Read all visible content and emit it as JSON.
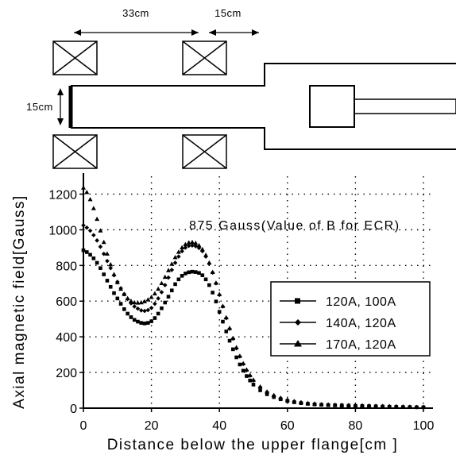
{
  "apparatus": {
    "dim_length_label": "33cm",
    "dim_gap_label": "15cm",
    "dim_diameter_label": "15cm"
  },
  "chart_data": {
    "type": "line",
    "xlabel": "Distance below the upper flange[cm ]",
    "ylabel": "Axial magnetic field[Gauss]",
    "xlim": [
      0,
      100
    ],
    "ylim": [
      0,
      1300
    ],
    "xticks": [
      0,
      20,
      40,
      60,
      80,
      100
    ],
    "yticks": [
      0,
      200,
      400,
      600,
      800,
      1000,
      1200
    ],
    "grid": "dotted",
    "legend_position": "right",
    "annotation": {
      "text": "875 Gauss(Value of B for ECR)",
      "value": 875
    },
    "series": [
      {
        "name": "120A, 100A",
        "marker": "square",
        "x": [
          0,
          1,
          2,
          3,
          4,
          5,
          6,
          7,
          8,
          9,
          10,
          11,
          12,
          13,
          14,
          15,
          16,
          17,
          18,
          19,
          20,
          21,
          22,
          23,
          24,
          25,
          26,
          27,
          28,
          29,
          30,
          31,
          32,
          33,
          34,
          35,
          36,
          37,
          38,
          39,
          40,
          41,
          42,
          43,
          44,
          45,
          46,
          47,
          48,
          49,
          50,
          52,
          54,
          56,
          58,
          60,
          62,
          64,
          66,
          68,
          70,
          72,
          74,
          76,
          78,
          80,
          82,
          84,
          86,
          88,
          90,
          92,
          94,
          96,
          98,
          100
        ],
        "values": [
          885,
          875,
          860,
          840,
          815,
          785,
          750,
          715,
          680,
          645,
          615,
          585,
          555,
          530,
          510,
          495,
          485,
          478,
          475,
          478,
          487,
          505,
          530,
          560,
          592,
          625,
          660,
          695,
          722,
          742,
          755,
          762,
          765,
          763,
          758,
          745,
          722,
          690,
          648,
          598,
          540,
          485,
          430,
          378,
          330,
          285,
          245,
          210,
          180,
          155,
          132,
          100,
          78,
          62,
          50,
          40,
          33,
          28,
          24,
          21,
          19,
          17,
          16,
          15,
          14,
          13,
          12,
          11,
          10,
          9,
          8,
          7,
          6,
          6,
          5,
          5
        ]
      },
      {
        "name": "140A, 120A",
        "marker": "diamond",
        "x": [
          0,
          1,
          2,
          3,
          4,
          5,
          6,
          7,
          8,
          9,
          10,
          11,
          12,
          13,
          14,
          15,
          16,
          17,
          18,
          19,
          20,
          21,
          22,
          23,
          24,
          25,
          26,
          27,
          28,
          29,
          30,
          31,
          32,
          33,
          34,
          35,
          36,
          37,
          38,
          39,
          40,
          41,
          42,
          43,
          44,
          45,
          46,
          47,
          48,
          49,
          50,
          52,
          54,
          56,
          58,
          60,
          62,
          64,
          66,
          68,
          70,
          72,
          74,
          76,
          78,
          80,
          82,
          84,
          86,
          88,
          90,
          92,
          94,
          96,
          98,
          100
        ],
        "values": [
          1025,
          1012,
          995,
          970,
          940,
          905,
          865,
          825,
          785,
          745,
          708,
          672,
          640,
          612,
          588,
          570,
          558,
          548,
          545,
          550,
          562,
          585,
          615,
          650,
          690,
          732,
          775,
          815,
          850,
          880,
          900,
          910,
          912,
          908,
          898,
          880,
          850,
          810,
          760,
          700,
          635,
          570,
          505,
          445,
          390,
          335,
          290,
          248,
          212,
          182,
          155,
          118,
          90,
          70,
          56,
          45,
          38,
          32,
          27,
          24,
          21,
          19,
          18,
          17,
          16,
          15,
          14,
          13,
          12,
          11,
          10,
          9,
          8,
          7,
          6,
          6
        ]
      },
      {
        "name": "170A, 120A",
        "marker": "triangle",
        "x": [
          0,
          1,
          2,
          3,
          4,
          5,
          6,
          7,
          8,
          9,
          10,
          11,
          12,
          13,
          14,
          15,
          16,
          17,
          18,
          19,
          20,
          21,
          22,
          23,
          24,
          25,
          26,
          27,
          28,
          29,
          30,
          31,
          32,
          33,
          34,
          35,
          36,
          37,
          38,
          39,
          40,
          41,
          42,
          43,
          44,
          45,
          46,
          47,
          48,
          49,
          50,
          52,
          54,
          56,
          58,
          60,
          62,
          64,
          66,
          68,
          70,
          72,
          74,
          76,
          78,
          80,
          82,
          84,
          86,
          88,
          90,
          92,
          94,
          96,
          98,
          100
        ],
        "values": [
          1235,
          1210,
          1170,
          1120,
          1060,
          995,
          930,
          865,
          805,
          750,
          705,
          668,
          638,
          615,
          600,
          592,
          590,
          592,
          598,
          608,
          622,
          642,
          668,
          700,
          735,
          772,
          808,
          845,
          875,
          900,
          918,
          928,
          930,
          925,
          912,
          890,
          858,
          815,
          762,
          702,
          638,
          572,
          508,
          448,
          392,
          340,
          292,
          250,
          215,
          184,
          158,
          120,
          92,
          72,
          57,
          46,
          38,
          32,
          27,
          24,
          21,
          19,
          18,
          17,
          16,
          15,
          14,
          13,
          12,
          11,
          10,
          9,
          8,
          7,
          6,
          6
        ]
      }
    ]
  }
}
